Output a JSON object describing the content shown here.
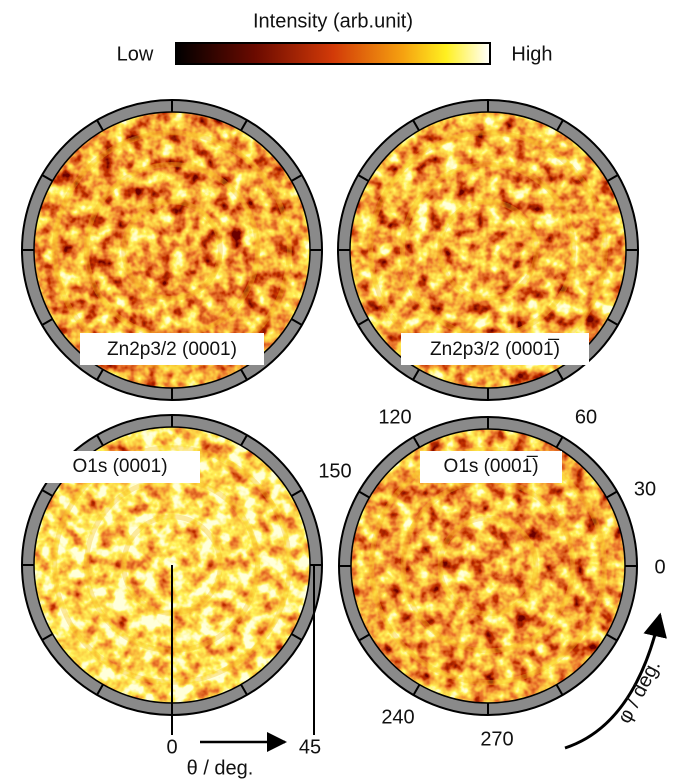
{
  "colorbar": {
    "title": "Intensity (arb.unit)",
    "low": "Low",
    "high": "High"
  },
  "panels": [
    {
      "label": "Zn2p3/2 (0001)"
    },
    {
      "label": "Zn2p3/2 (0001̅)"
    },
    {
      "label": "O1s (0001)"
    },
    {
      "label": "O1s (0001̅)"
    }
  ],
  "phi_axis": {
    "ticks": [
      0,
      30,
      60,
      120,
      150,
      240,
      270
    ],
    "label": "φ / deg."
  },
  "theta_axis": {
    "ticks": [
      0,
      45
    ],
    "label": "θ / deg."
  }
}
